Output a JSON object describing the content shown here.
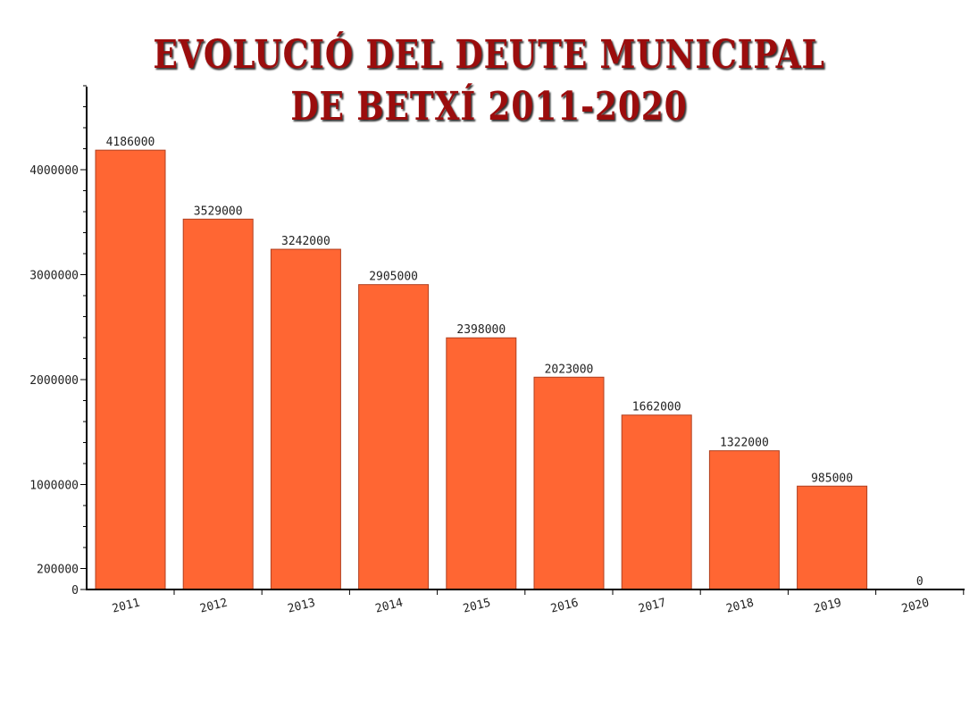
{
  "chart_data": {
    "type": "bar",
    "title_line1": "EVOLUCIÓ DEL DEUTE MUNICIPAL",
    "title_line2": "DE BETXÍ 2011-2020",
    "xlabel": "",
    "ylabel": "",
    "categories": [
      "2011",
      "2012",
      "2013",
      "2014",
      "2015",
      "2016",
      "2017",
      "2018",
      "2019",
      "2020"
    ],
    "values": [
      4186000,
      3529000,
      3242000,
      2905000,
      2398000,
      2023000,
      1662000,
      1322000,
      985000,
      0
    ],
    "yticks": [
      0,
      200000,
      1000000,
      2000000,
      3000000,
      4000000
    ],
    "ylim": [
      0,
      4800000
    ],
    "minor_tick_step": 200000,
    "bar_color": "#ff6633",
    "title_color": "#9b0d0d",
    "grid": false
  }
}
